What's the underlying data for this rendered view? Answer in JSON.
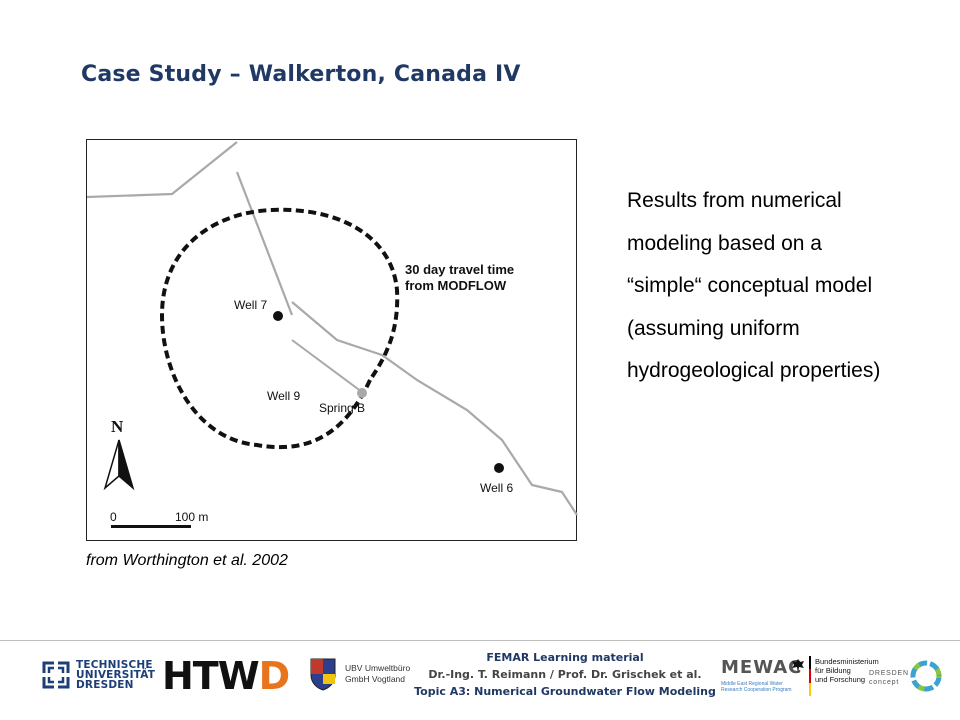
{
  "title": "Case Study – Walkerton, Canada IV",
  "figure": {
    "label_contour": "30 day travel time",
    "label_contour2": "from MODFLOW",
    "well7": "Well 7",
    "well9": "Well 9",
    "springB": "Spring B",
    "well6": "Well 6",
    "north": "N",
    "scale_zero": "0",
    "scale_len": "100 m"
  },
  "caption": "from Worthington et al. 2002",
  "results_lines": [
    "Results from numerical",
    "modeling based on a",
    "“simple“ conceptual model",
    "(assuming uniform",
    "hydrogeological properties)"
  ],
  "footer": {
    "tud_line1": "TECHNISCHE",
    "tud_line2": "UNIVERSITÄT",
    "tud_line3": "DRESDEN",
    "htwd_main": "HTW",
    "htwd_d": "D",
    "ubv_line1": "UBV Umweltbüro",
    "ubv_line2": "GmbH Vogtland",
    "femar_line1": "FEMAR Learning material",
    "femar_line2": "Dr.-Ing. T. Reimann / Prof. Dr. Grischek et al.",
    "femar_line3": "Topic A3: Numerical Groundwater Flow Modeling",
    "mewac": "MEWAC",
    "mewac_sub1": "Middle East Regional Water",
    "mewac_sub2": "Research Cooperation Program",
    "bmbf_line1": "Bundesministerium",
    "bmbf_line2": "für Bildung",
    "bmbf_line3": "und Forschung",
    "dresden_line1": "DRESDEN",
    "dresden_line2": "concept"
  },
  "colors": {
    "title": "#1f3864",
    "road": "#a9a9a9",
    "contour": "#111111",
    "accent_orange": "#e8741e"
  }
}
